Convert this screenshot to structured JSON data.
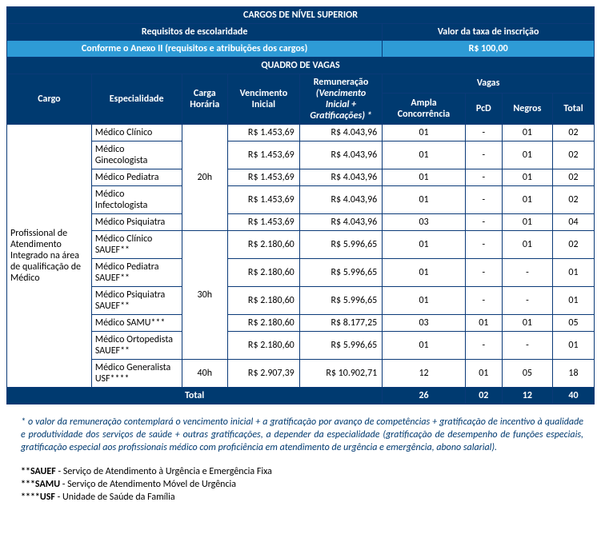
{
  "colors": {
    "header_dark": "#003a70",
    "header_light": "#2e9bd6",
    "border": "#0b3a78",
    "footnote_primary": "#003a70"
  },
  "header": {
    "title": "CARGOS DE NÍVEL SUPERIOR",
    "req_label": "Requisitos de escolaridade",
    "fee_label": "Valor da taxa de inscrição",
    "req_value": "Conforme o Anexo II (requisitos e atribuições dos cargos)",
    "fee_value": "R$ 100,00",
    "quadro": "QUADRO DE VAGAS"
  },
  "columns": {
    "cargo": "Cargo",
    "especialidade": "Especialidade",
    "carga": "Carga Horária",
    "vencimento": "Vencimento Inicial",
    "remuneracao_line1": "Remuneração",
    "remuneracao_line2": "(Vencimento Inicial + Gratificações) *",
    "vagas": "Vagas",
    "ampla": "Ampla Concorrência",
    "pcd": "PcD",
    "negros": "Negros",
    "total": "Total"
  },
  "cargo_label": "Profissional de Atendimento Integrado na área de qualificação de Médico",
  "groups": [
    {
      "carga": "20h",
      "rows": [
        {
          "espec": "Médico Clínico",
          "venc": "R$ 1.453,69",
          "remu": "R$ 4.043,96",
          "ampla": "01",
          "pcd": "-",
          "negros": "01",
          "total": "02"
        },
        {
          "espec": "Médico Ginecologista",
          "venc": "R$ 1.453,69",
          "remu": "R$ 4.043,96",
          "ampla": "01",
          "pcd": "-",
          "negros": "01",
          "total": "02"
        },
        {
          "espec": "Médico Pediatra",
          "venc": "R$ 1.453,69",
          "remu": "R$ 4.043,96",
          "ampla": "01",
          "pcd": "-",
          "negros": "01",
          "total": "02"
        },
        {
          "espec": "Médico Infectologista",
          "venc": "R$ 1.453,69",
          "remu": "R$ 4.043,96",
          "ampla": "01",
          "pcd": "-",
          "negros": "01",
          "total": "02"
        },
        {
          "espec": "Médico Psiquiatra",
          "venc": "R$ 1.453,69",
          "remu": "R$ 4.043,96",
          "ampla": "03",
          "pcd": "-",
          "negros": "01",
          "total": "04"
        }
      ]
    },
    {
      "carga": "30h",
      "rows": [
        {
          "espec": "Médico Clínico SAUEF**",
          "venc": "R$ 2.180,60",
          "remu": "R$ 5.996,65",
          "ampla": "01",
          "pcd": "-",
          "negros": "01",
          "total": "02"
        },
        {
          "espec": "Médico Pediatra SAUEF**",
          "venc": "R$ 2.180,60",
          "remu": "R$ 5.996,65",
          "ampla": "01",
          "pcd": "-",
          "negros": "-",
          "total": "01"
        },
        {
          "espec": "Médico Psiquiatra SAUEF**",
          "venc": "R$ 2.180,60",
          "remu": "R$ 5.996,65",
          "ampla": "01",
          "pcd": "-",
          "negros": "-",
          "total": "01"
        },
        {
          "espec": "Médico SAMU***",
          "venc": "R$ 2.180,60",
          "remu": "R$ 8.177,25",
          "ampla": "03",
          "pcd": "01",
          "negros": "01",
          "total": "05"
        },
        {
          "espec": "Médico Ortopedista SAUEF**",
          "venc": "R$ 2.180,60",
          "remu": "R$ 5.996,65",
          "ampla": "01",
          "pcd": "-",
          "negros": "-",
          "total": "01"
        }
      ]
    },
    {
      "carga": "40h",
      "rows": [
        {
          "espec": "Médico Generalista USF****",
          "venc": "R$ 2.907,39",
          "remu": "R$ 10.902,71",
          "ampla": "12",
          "pcd": "01",
          "negros": "05",
          "total": "18"
        }
      ]
    }
  ],
  "totals": {
    "label": "Total",
    "ampla": "26",
    "pcd": "02",
    "negros": "12",
    "total": "40"
  },
  "footnotes": {
    "primary": "* o valor da remuneração contemplará o vencimento inicial + a gratificação por avanço de competências + gratificação de incentivo à qualidade e produtividade dos serviços de saúde + outras gratificações, a depender da especialidade (gratificação de desempenho de funções especiais, gratificação especial aos profissionais médico com proficiência em atendimento de urgência e emergência, abono salarial).",
    "sauef": "**SAUEF - Serviço de Atendimento à Urgência e Emergência Fixa",
    "samu": "***SAMU - Serviço de Atendimento Móvel de Urgência",
    "usf": "****USF - Unidade de Saúde da Família"
  }
}
